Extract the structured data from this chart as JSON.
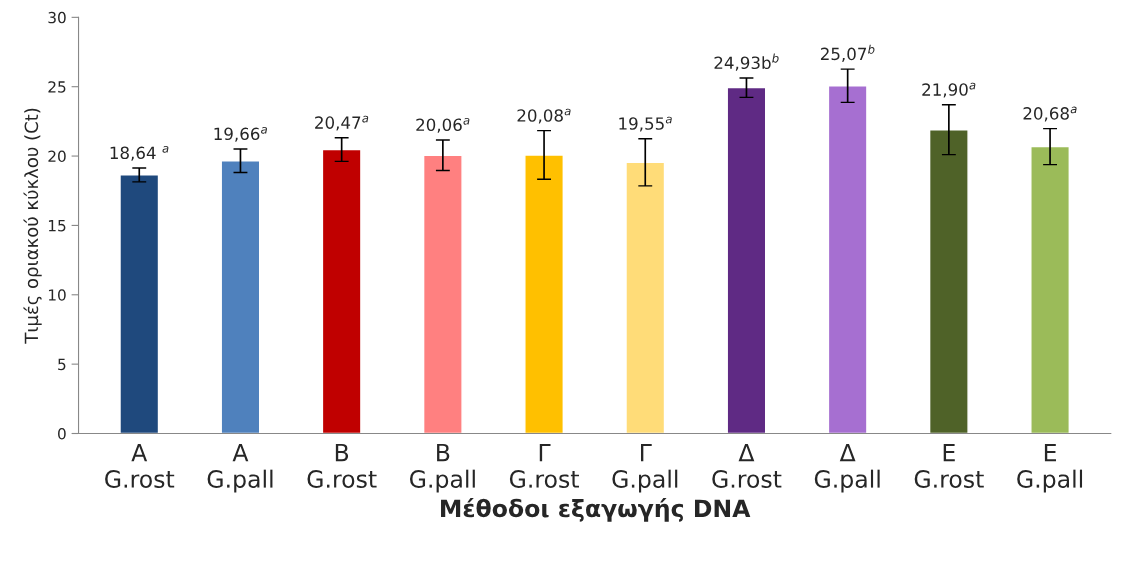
{
  "chart_data": {
    "type": "bar",
    "xlabel": "Μέθοδοι εξαγωγής DNA",
    "ylabel": "Τιμές οριακού κύκλου (Ct)",
    "categories": [
      "Α\nG.rost",
      "Α\nG.pall",
      "Β\nG.rost",
      "Β\nG.pall",
      "Γ\nG.rost",
      "Γ\nG.pall",
      "Δ\nG.rost",
      "Δ\nG.pall",
      "Ε\nG.rost",
      "Ε\nG.pall"
    ],
    "values": [
      18.64,
      19.66,
      20.47,
      20.06,
      20.08,
      19.55,
      24.93,
      25.07,
      21.9,
      20.68
    ],
    "errors": [
      0.5,
      0.85,
      0.85,
      1.1,
      1.75,
      1.7,
      0.7,
      1.2,
      1.8,
      1.3
    ],
    "value_labels": [
      "18,64 $^{a}$",
      "19,66$^{a}$",
      "20,47$^{a}$",
      "20,06$^{a}$",
      "20,08$^{a}$",
      "19,55$^{a}$",
      "24,93b$^{b}$",
      "25,07$^{b}$",
      "21,90$^{a}$",
      "20,68$^{a}$"
    ],
    "colors": [
      "#1f497d",
      "#4f81bd",
      "#c00000",
      "#ff8080",
      "#ffc000",
      "#ffdc78",
      "#5f2a84",
      "#a66fd1",
      "#4f6228",
      "#9bbb59"
    ],
    "ylim": [
      0,
      30
    ],
    "yticks": [
      0,
      5,
      10,
      15,
      20,
      25,
      30
    ],
    "grid": false
  }
}
